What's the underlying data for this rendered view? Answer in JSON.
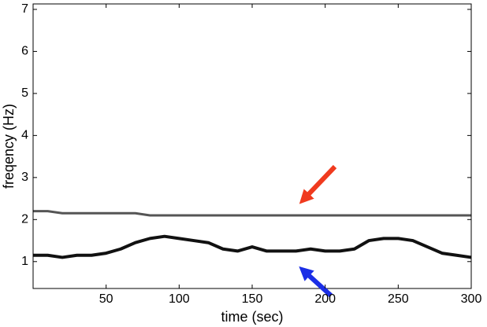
{
  "chart_data": {
    "type": "spectrogram",
    "xlabel": "time (sec)",
    "ylabel": "freqency (Hz)",
    "xlim": [
      0,
      300
    ],
    "xticks": [
      50,
      100,
      150,
      200,
      250,
      300
    ],
    "ylim": [
      0.36,
      7.13
    ],
    "yticks": [
      1,
      2,
      3,
      4,
      5,
      6,
      7
    ],
    "x": [
      0,
      10,
      20,
      30,
      40,
      50,
      60,
      70,
      80,
      90,
      100,
      110,
      120,
      130,
      140,
      150,
      160,
      170,
      180,
      190,
      200,
      210,
      220,
      230,
      240,
      250,
      260,
      270,
      280,
      290,
      300
    ],
    "series": [
      {
        "color": "#111111",
        "values": [
          1.15,
          1.15,
          1.1,
          1.15,
          1.15,
          1.2,
          1.3,
          1.45,
          1.55,
          1.6,
          1.55,
          1.5,
          1.45,
          1.3,
          1.25,
          1.35,
          1.25,
          1.25,
          1.25,
          1.3,
          1.25,
          1.25,
          1.3,
          1.5,
          1.55,
          1.55,
          1.5,
          1.35,
          1.2,
          1.15,
          1.1
        ]
      },
      {
        "color": "#555555",
        "values": [
          2.2,
          2.2,
          2.15,
          2.15,
          2.15,
          2.15,
          2.15,
          2.15,
          2.1,
          2.1,
          2.1,
          2.1,
          2.1,
          2.1,
          2.1,
          2.1,
          2.1,
          2.1,
          2.1,
          2.1,
          2.1,
          2.1,
          2.1,
          2.1,
          2.1,
          2.1,
          2.1,
          2.1,
          2.1,
          2.1,
          2.1
        ]
      }
    ]
  }
}
